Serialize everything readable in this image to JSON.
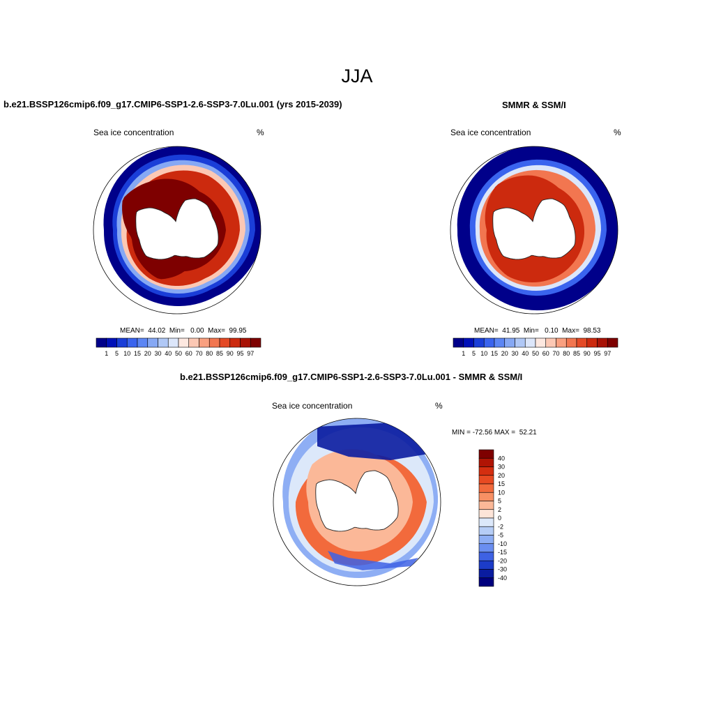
{
  "figure": {
    "title": "JJA"
  },
  "panels": [
    {
      "title": "b.e21.BSSP126cmip6.f09_g17.CMIP6-SSP1-2.6-SSP3-7.0Lu.001 (yrs 2015-2039)",
      "variable": "Sea ice concentration",
      "units": "%",
      "stats": "MEAN=  44.02  Min=   0.00  Max=  99.95"
    },
    {
      "title": "SMMR & SSM/I",
      "variable": "Sea ice concentration",
      "units": "%",
      "stats": "MEAN=  41.95  Min=   0.10  Max=  98.53"
    },
    {
      "title": "b.e21.BSSP126cmip6.f09_g17.CMIP6-SSP1-2.6-SSP3-7.0Lu.001 - SMMR & SSM/I",
      "variable": "Sea ice concentration",
      "units": "%",
      "stats": "MIN = -72.56 MAX =  52.21"
    }
  ],
  "chart_data": [
    {
      "type": "heatmap",
      "projection": "south-polar-stereographic",
      "title": "b.e21.BSSP126cmip6.f09_g17.CMIP6-SSP1-2.6-SSP3-7.0Lu.001 (yrs 2015-2039)",
      "variable": "Sea ice concentration",
      "units": "%",
      "mean": 44.02,
      "min": 0.0,
      "max": 99.95,
      "colorbar_levels": [
        1,
        5,
        10,
        15,
        20,
        30,
        40,
        50,
        60,
        70,
        80,
        85,
        90,
        95,
        97
      ],
      "colorbar_colors": [
        "#00008a",
        "#0010b8",
        "#1a3ed8",
        "#3a64ee",
        "#5c86f4",
        "#86a8f4",
        "#b0c8f6",
        "#dce6fa",
        "#fde8e0",
        "#fcc8b4",
        "#f9a080",
        "#f27650",
        "#e44a26",
        "#cc2a0e",
        "#a81206",
        "#7e0000"
      ],
      "colorbar_position": "bottom"
    },
    {
      "type": "heatmap",
      "projection": "south-polar-stereographic",
      "title": "SMMR & SSM/I",
      "variable": "Sea ice concentration",
      "units": "%",
      "mean": 41.95,
      "min": 0.1,
      "max": 98.53,
      "colorbar_levels": [
        1,
        5,
        10,
        15,
        20,
        30,
        40,
        50,
        60,
        70,
        80,
        85,
        90,
        95,
        97
      ],
      "colorbar_colors": [
        "#00008a",
        "#0010b8",
        "#1a3ed8",
        "#3a64ee",
        "#5c86f4",
        "#86a8f4",
        "#b0c8f6",
        "#dce6fa",
        "#fde8e0",
        "#fcc8b4",
        "#f9a080",
        "#f27650",
        "#e44a26",
        "#cc2a0e",
        "#a81206",
        "#7e0000"
      ],
      "colorbar_position": "bottom"
    },
    {
      "type": "heatmap",
      "projection": "south-polar-stereographic",
      "title": "b.e21.BSSP126cmip6.f09_g17.CMIP6-SSP1-2.6-SSP3-7.0Lu.001 - SMMR & SSM/I",
      "variable": "Sea ice concentration",
      "units": "%",
      "min": -72.56,
      "max": 52.21,
      "colorbar_levels": [
        40,
        30,
        20,
        15,
        10,
        5,
        2,
        0,
        -2,
        -5,
        -10,
        -15,
        -20,
        -30,
        -40
      ],
      "colorbar_colors": [
        "#7e0000",
        "#b01404",
        "#d42e10",
        "#e84a22",
        "#f26a3c",
        "#f89064",
        "#fbb898",
        "#fde4d8",
        "#dce8fa",
        "#b6cdf6",
        "#8eaef4",
        "#6a8ef0",
        "#3e62e4",
        "#1c3cc8",
        "#0a1ca0",
        "#00007e"
      ],
      "colorbar_position": "right"
    }
  ]
}
